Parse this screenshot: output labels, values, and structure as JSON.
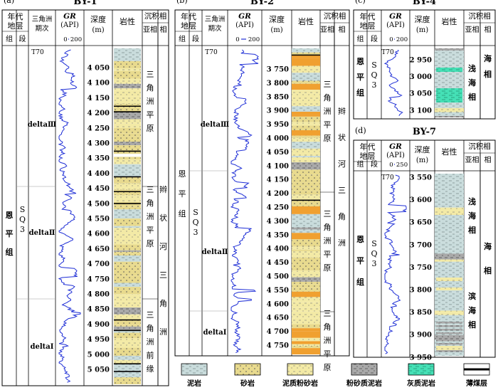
{
  "panels": [
    {
      "id": "a",
      "tag": "(a)",
      "title": "BY-1",
      "headers": {
        "era": "年代地层",
        "group": "组",
        "seg": "段",
        "delta_phase": "三角洲期次",
        "gr": "GR",
        "gr_unit": "(API)",
        "gr_min": "0",
        "gr_max": "200",
        "depth": "深度",
        "depth_unit": "(m)",
        "lith": "岩性",
        "facies": "沉积相",
        "subfacies": "亚相",
        "facies_col": "相"
      },
      "group_name": "恩平组",
      "segment": "SQ3",
      "t70": "T70",
      "phases": [
        "deltaⅢ",
        "deltaⅡ",
        "deltaⅠ"
      ],
      "depths": [
        "4 050",
        "4 100",
        "4 150",
        "4 200",
        "4 250",
        "4 300",
        "4 350",
        "4 400",
        "4 450",
        "4 500",
        "4 550",
        "4 600",
        "4 650",
        "4 700",
        "4 750",
        "4 800",
        "4 850",
        "4 900",
        "4 950",
        "5 000",
        "5 050"
      ],
      "subfacies": [
        "三角洲平原",
        "三角洲平原",
        "三角洲前缘"
      ],
      "facies": "辫状河三角洲"
    },
    {
      "id": "b",
      "tag": "(b)",
      "title": "BY-2",
      "headers": {
        "era": "年代地层",
        "group": "组",
        "seg": "段",
        "delta_phase": "三角洲期次",
        "gr": "GR",
        "gr_unit": "(API)",
        "gr_min": "0",
        "gr_max": "200",
        "depth": "深度",
        "depth_unit": "(m)",
        "lith": "岩性",
        "facies": "沉积相",
        "subfacies": "亚相",
        "facies_col": "相"
      },
      "group_name": "恩平组",
      "segment": "SQ3",
      "t70": "T70",
      "phases": [
        "deltaⅢ",
        "deltaⅡ",
        "deltaⅠ"
      ],
      "depths": [
        "3 750",
        "3 800",
        "3 850",
        "3 900",
        "3 950",
        "4 000",
        "4 050",
        "4 100",
        "4 150",
        "4 200",
        "4 250",
        "4 300",
        "4 350",
        "4 400",
        "4 450",
        "4 500",
        "4 550",
        "4 600",
        "4 650",
        "4 700",
        "4 750"
      ],
      "subfacies": [
        "三角洲平原",
        "三角洲平原",
        "三角洲平原"
      ],
      "facies": "辫状河三角洲"
    },
    {
      "id": "c",
      "tag": "(c)",
      "title": "BY-4",
      "headers": {
        "era": "年代地层",
        "group": "组",
        "seg": "段",
        "gr": "GR",
        "gr_unit": "(API)",
        "gr_min": "0",
        "gr_max": "200",
        "depth": "深度",
        "depth_unit": "(m)",
        "lith": "岩性",
        "facies": "沉积相",
        "subfacies": "亚相",
        "facies_col": "相"
      },
      "group_name": "恩平组",
      "segment": "SQ3",
      "t70": "T70",
      "depths": [
        "2 950",
        "3 000",
        "3 050",
        "3 100"
      ],
      "subfacies": [
        "浅海相"
      ],
      "facies": "海相"
    },
    {
      "id": "d",
      "tag": "(d)",
      "title": "BY-7",
      "headers": {
        "era": "年代地层",
        "group": "组",
        "seg": "段",
        "gr": "GR",
        "gr_unit": "(API)",
        "gr_min": "0",
        "gr_max": "250",
        "depth": "深度",
        "depth_unit": "(m)",
        "lith": "岩性",
        "facies": "沉积相",
        "subfacies": "亚相",
        "facies_col": "相"
      },
      "group_name": "恩平组",
      "segment": "SQ3",
      "t70": "T70",
      "depths": [
        "3 550",
        "3 600",
        "3 650",
        "3 700",
        "3 750",
        "3 800",
        "3 850",
        "3 900",
        "3 950"
      ],
      "subfacies": [
        "浅海相",
        "滨海相"
      ],
      "facies": "海相"
    }
  ],
  "legend": [
    {
      "key": "mudstone",
      "label": "泥岩",
      "fill": "#c9dcdc"
    },
    {
      "key": "sandstone",
      "label": "砂岩",
      "fill": "#e8da8e"
    },
    {
      "key": "muddy-siltstone",
      "label": "泥质粉砂岩",
      "fill": "#f3eaa6"
    },
    {
      "key": "silty-mudstone",
      "label": "粉砂质泥岩",
      "fill": "#a9a9a9"
    },
    {
      "key": "calcareous-mudstone",
      "label": "灰质泥岩",
      "fill": "#45e0b6"
    },
    {
      "key": "coal",
      "label": "薄煤层",
      "fill": "#ffffff"
    }
  ],
  "colors": {
    "gr_curve": "#1f2fd6",
    "frame": "#000000",
    "grid": "#9a9a9a",
    "orange_sand": "#f0a030"
  }
}
